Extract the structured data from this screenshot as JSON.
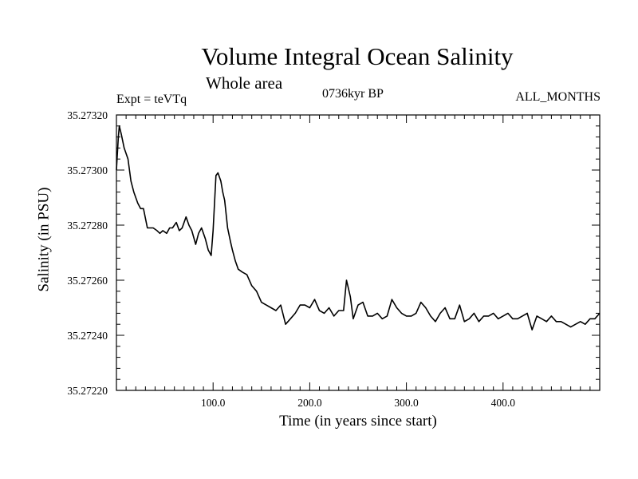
{
  "chart_data": {
    "type": "line",
    "title": "Volume Integral Ocean Salinity",
    "subtitle": "Whole area",
    "annotations": {
      "left": "Expt = teVTq",
      "center": "0736kyr BP",
      "right": "ALL_MONTHS"
    },
    "xlabel": "Time (in years since start)",
    "ylabel": "Salinity (in PSU)",
    "xlim": [
      0,
      500
    ],
    "ylim": [
      35.2722,
      35.2732
    ],
    "x_ticks": [
      100,
      200,
      300,
      400
    ],
    "x_tick_labels": [
      "100.0",
      "200.0",
      "300.0",
      "400.0"
    ],
    "y_ticks": [
      35.2722,
      35.2724,
      35.2726,
      35.2728,
      35.273,
      35.2732
    ],
    "y_tick_labels": [
      "35.27220",
      "35.27240",
      "35.27260",
      "35.27280",
      "35.27300",
      "35.27320"
    ],
    "grid": false,
    "legend": "none",
    "line_color": "#000000",
    "series": [
      {
        "x": [
          0,
          2,
          3,
          5,
          8,
          12,
          15,
          18,
          22,
          25,
          28,
          32,
          35,
          38,
          42,
          45,
          48,
          52,
          55,
          58,
          62,
          65,
          68,
          72,
          75,
          78,
          82,
          85,
          88,
          92,
          95,
          98,
          100,
          103,
          105,
          108,
          110,
          112,
          115,
          118,
          120,
          123,
          126,
          130,
          135,
          140,
          145,
          150,
          155,
          160,
          165,
          170,
          175,
          180,
          185,
          190,
          195,
          200,
          205,
          210,
          215,
          220,
          225,
          230,
          235,
          238,
          242,
          245,
          250,
          255,
          260,
          265,
          270,
          275,
          280,
          285,
          290,
          295,
          300,
          305,
          310,
          315,
          320,
          325,
          330,
          335,
          340,
          345,
          350,
          355,
          360,
          365,
          370,
          375,
          380,
          385,
          390,
          395,
          400,
          405,
          410,
          415,
          420,
          425,
          430,
          435,
          440,
          445,
          450,
          455,
          460,
          465,
          470,
          475,
          480,
          485,
          490,
          495,
          500
        ],
        "y": [
          35.273,
          35.27312,
          35.27316,
          35.27313,
          35.27308,
          35.27304,
          35.27296,
          35.27292,
          35.27288,
          35.27286,
          35.27286,
          35.27279,
          35.27279,
          35.27279,
          35.27278,
          35.27277,
          35.27278,
          35.27277,
          35.27279,
          35.27279,
          35.27281,
          35.27278,
          35.27279,
          35.27283,
          35.2728,
          35.27278,
          35.27273,
          35.27277,
          35.27279,
          35.27275,
          35.27271,
          35.27269,
          35.27278,
          35.27298,
          35.27299,
          35.27296,
          35.27292,
          35.27289,
          35.27279,
          35.27274,
          35.27271,
          35.27267,
          35.27264,
          35.27263,
          35.27262,
          35.27258,
          35.27256,
          35.27252,
          35.27251,
          35.2725,
          35.27249,
          35.27251,
          35.27244,
          35.27246,
          35.27248,
          35.27251,
          35.27251,
          35.2725,
          35.27253,
          35.27249,
          35.27248,
          35.2725,
          35.27247,
          35.27249,
          35.27249,
          35.2726,
          35.27254,
          35.27246,
          35.27251,
          35.27252,
          35.27247,
          35.27247,
          35.27248,
          35.27246,
          35.27247,
          35.27253,
          35.2725,
          35.27248,
          35.27247,
          35.27247,
          35.27248,
          35.27252,
          35.2725,
          35.27247,
          35.27245,
          35.27248,
          35.2725,
          35.27246,
          35.27246,
          35.27251,
          35.27245,
          35.27246,
          35.27248,
          35.27245,
          35.27247,
          35.27247,
          35.27248,
          35.27246,
          35.27247,
          35.27248,
          35.27246,
          35.27246,
          35.27247,
          35.27248,
          35.27242,
          35.27247,
          35.27246,
          35.27245,
          35.27247,
          35.27245,
          35.27245,
          35.27244,
          35.27243,
          35.27244,
          35.27245,
          35.27244,
          35.27246,
          35.27246,
          35.27248
        ]
      }
    ]
  }
}
